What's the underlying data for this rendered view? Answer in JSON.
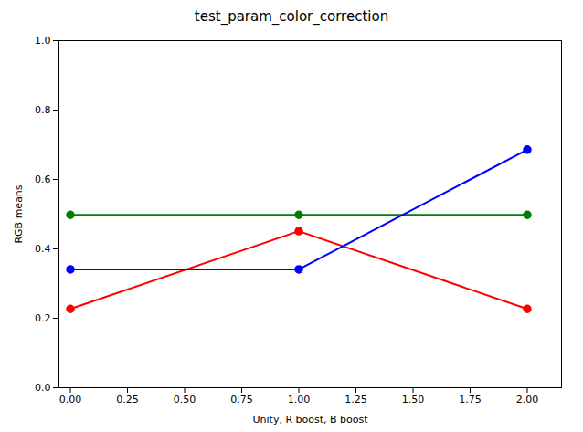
{
  "chart_data": {
    "type": "line",
    "title": "test_param_color_correction",
    "xlabel": "Unity, R boost, B boost",
    "ylabel": "RGB means",
    "x": [
      0,
      1,
      2
    ],
    "series": [
      {
        "color": "#ff0000",
        "values": [
          0.227,
          0.451,
          0.227
        ]
      },
      {
        "color": "#008000",
        "values": [
          0.498,
          0.498,
          0.498
        ]
      },
      {
        "color": "#0000ff",
        "values": [
          0.341,
          0.341,
          0.686
        ]
      }
    ],
    "xlim": [
      -0.05,
      2.15
    ],
    "ylim": [
      0.0,
      1.0
    ],
    "xticks": [
      {
        "value": 0,
        "label": "0.00"
      },
      0.25,
      {
        "value": 0.5,
        "label": "0.50"
      },
      0.75,
      {
        "value": 1,
        "label": "1.00"
      },
      1.25,
      {
        "value": 1.5,
        "label": "1.50"
      },
      1.75,
      {
        "value": 2,
        "label": "2.00"
      }
    ],
    "yticks": [
      {
        "value": 0,
        "label": "0.0"
      },
      0.2,
      0.4,
      0.6,
      0.8,
      {
        "value": 1,
        "label": "1.0"
      }
    ],
    "marker": "o",
    "grid": false
  }
}
